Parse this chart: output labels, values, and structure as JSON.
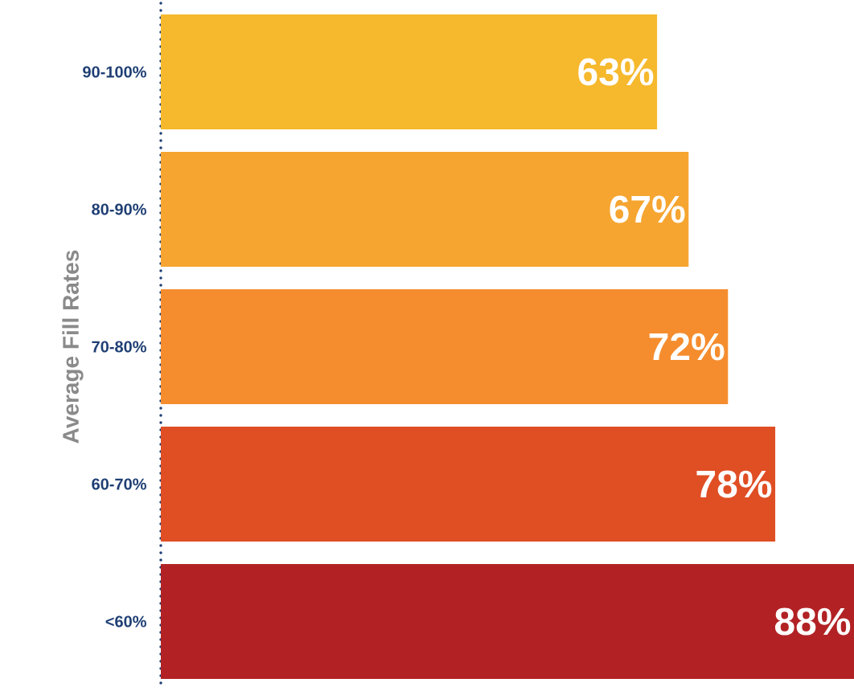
{
  "chart_data": {
    "type": "bar",
    "orientation": "horizontal",
    "ylabel": "Average Fill Rates",
    "categories": [
      "90-100%",
      "80-90%",
      "70-80%",
      "60-70%",
      "<60%"
    ],
    "values": [
      63,
      67,
      72,
      78,
      88
    ],
    "value_labels": [
      "63%",
      "67%",
      "72%",
      "78%",
      "88%"
    ],
    "colors": [
      "#f6b92d",
      "#f6a531",
      "#f58d2e",
      "#e04e24",
      "#b22225"
    ],
    "xlim": [
      0,
      88
    ]
  }
}
